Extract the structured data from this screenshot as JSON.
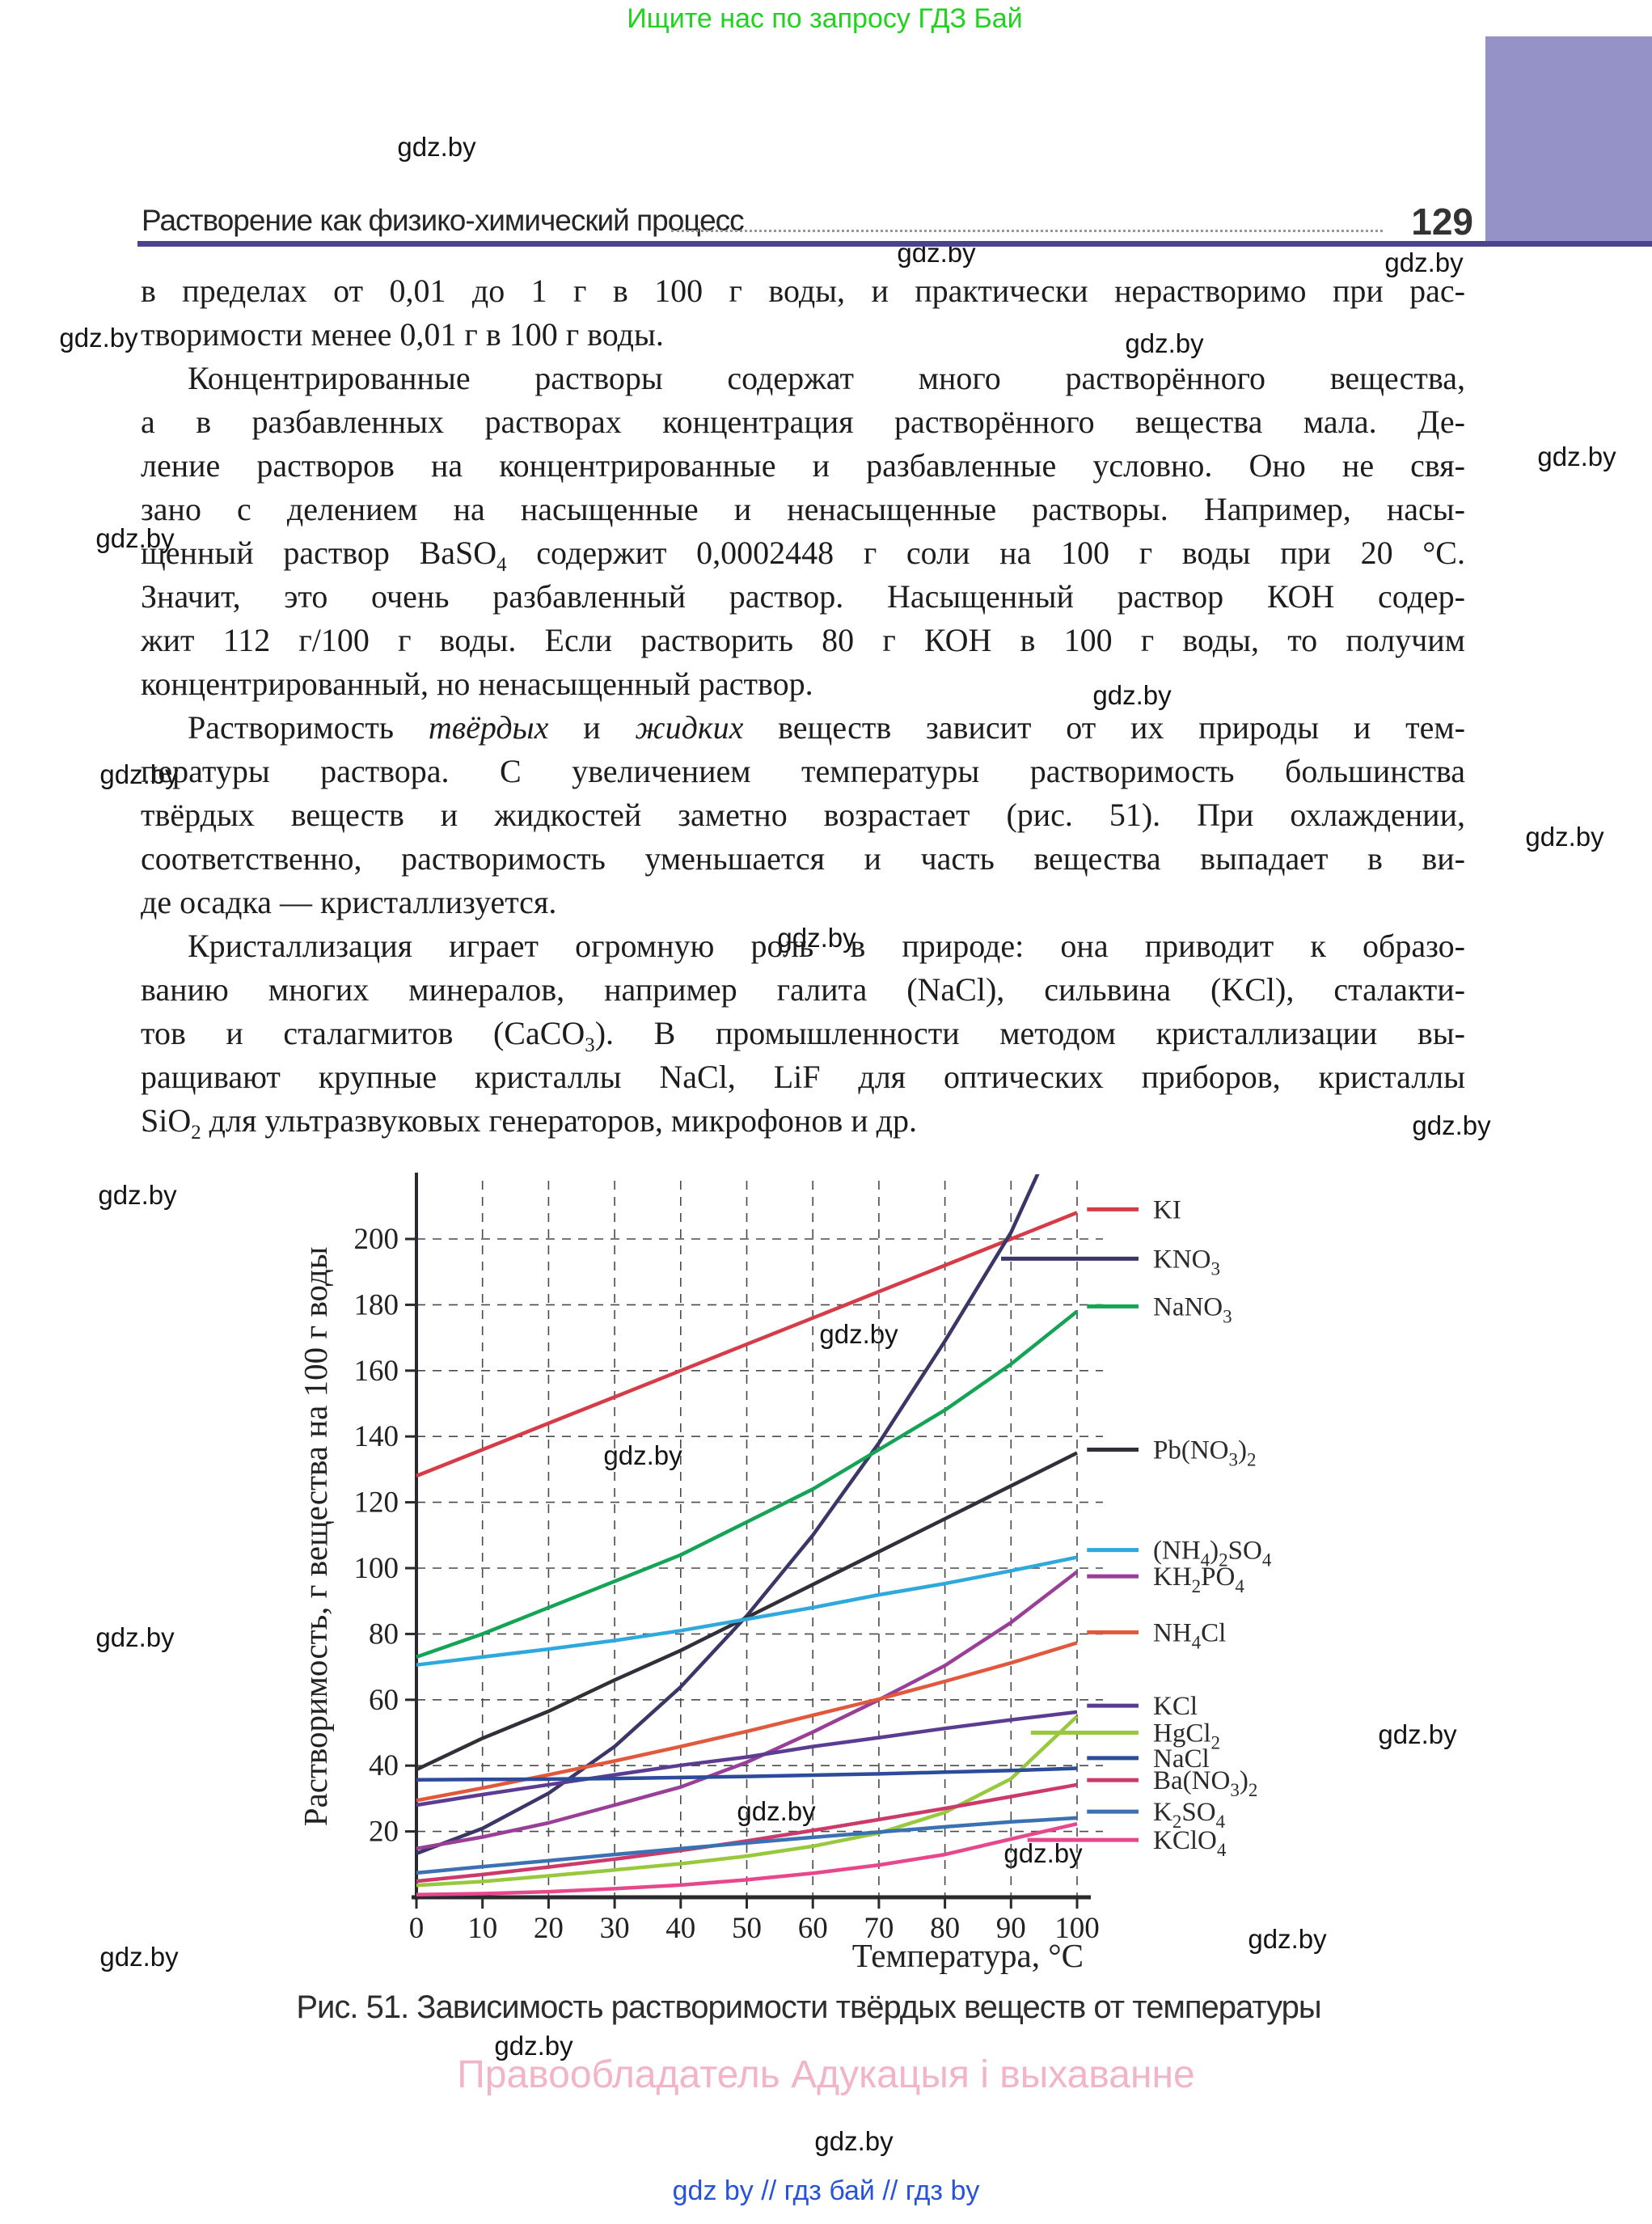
{
  "banner": {
    "text": "Ищите нас по запросу ГДЗ Бай",
    "color": "#1fd31f"
  },
  "watermark": {
    "text": "gdz.by"
  },
  "header": {
    "title": "Растворение как физико-химический процесс",
    "page_number": "129",
    "underline_color": "#4a4490",
    "block_color": "#9592c7"
  },
  "body": {
    "paragraphs": [
      {
        "indent": false,
        "lines": [
          [
            "в пределах от 0,01 до 1 г в 100 г воды, и практически нерастворимо при рас-"
          ],
          [
            "творимости менее 0,01 г в 100 г воды."
          ]
        ]
      },
      {
        "indent": true,
        "lines": [
          [
            "Концентрированные растворы содержат много растворённого вещества,"
          ],
          [
            "а в разбавленных растворах концентрация растворённого вещества мала. Де-"
          ],
          [
            "ление растворов на концентрированные и разбавленные условно. Оно не свя-"
          ],
          [
            "зано с делением на насыщенные и ненасыщенные растворы. Например, насы-"
          ],
          [
            "щенный раствор BaSO",
            {
              "t": "4",
              "s": 1
            },
            " содержит 0,0002448 г соли на 100 г воды при 20 °С."
          ],
          [
            "Значит, это очень разбавленный раствор. Насыщенный раствор КОН содер-"
          ],
          [
            "жит 112 г/100 г воды. Если растворить 80 г КОН в 100 г воды, то получим"
          ],
          [
            "концентрированный, но ненасыщенный раствор."
          ]
        ]
      },
      {
        "indent": true,
        "lines": [
          [
            "Растворимость ",
            {
              "t": "твёрдых",
              "i": 1
            },
            " и ",
            {
              "t": "жидких",
              "i": 1
            },
            " веществ зависит от их природы и тем-"
          ],
          [
            "пературы раствора. С увеличением температуры растворимость большинства"
          ],
          [
            "твёрдых веществ и жидкостей заметно возрастает (рис. 51). При охлаждении,"
          ],
          [
            "соответственно, растворимость уменьшается и часть вещества выпадает в ви-"
          ],
          [
            "де осадка — кристаллизуется."
          ]
        ]
      },
      {
        "indent": true,
        "lines": [
          [
            "Кристаллизация играет огромную роль в природе: она приводит к образо-"
          ],
          [
            "ванию многих минералов, например галита (NaCl), сильвина (KCl), сталакти-"
          ],
          [
            "тов и сталагмитов (CaCO",
            {
              "t": "3",
              "s": 1
            },
            "). В промышленности методом кристаллизации вы-"
          ],
          [
            "ращивают крупные кристаллы NaCl, LiF для оптических приборов, кристаллы"
          ],
          [
            "SiO",
            {
              "t": "2",
              "s": 1
            },
            " для ультразвуковых генераторов, микрофонов и др."
          ]
        ]
      }
    ]
  },
  "chart_data": {
    "type": "line",
    "title": "",
    "xlabel": "Температура, °С",
    "ylabel": "Растворимость, г вещества на 100 г воды",
    "x": [
      0,
      10,
      20,
      30,
      40,
      50,
      60,
      70,
      80,
      90,
      100
    ],
    "xlim": [
      0,
      100
    ],
    "ylim": [
      0,
      218
    ],
    "xticks": [
      0,
      10,
      20,
      30,
      40,
      50,
      60,
      70,
      80,
      90,
      100
    ],
    "yticks": [
      20,
      40,
      60,
      80,
      100,
      120,
      140,
      160,
      180,
      200
    ],
    "grid": "dashed",
    "legend_position": "right",
    "series": [
      {
        "formula": "KI",
        "color": "#d63c47",
        "values": [
          128,
          136,
          144,
          152,
          160,
          168,
          176,
          184,
          192,
          200,
          208
        ],
        "legend_value": 209,
        "key_start": 101.5
      },
      {
        "formula": "KNO_3",
        "color": "#3b3668",
        "values": [
          13.3,
          20.9,
          31.6,
          45.8,
          63.9,
          85.5,
          110,
          138,
          169,
          202,
          246
        ],
        "legend_value": 194,
        "key_start": 88.5
      },
      {
        "formula": "NaNO_3",
        "color": "#15a356",
        "values": [
          73,
          80,
          88,
          96,
          104,
          114,
          124,
          136,
          148,
          162,
          178
        ],
        "legend_value": 179.5,
        "key_start": 101.5
      },
      {
        "formula": "Pb(NO_3)_2",
        "color": "#303038",
        "values": [
          38.8,
          48.3,
          56.5,
          66,
          75,
          85,
          95,
          105,
          115,
          125,
          135
        ],
        "legend_value": 136,
        "key_start": 101.5
      },
      {
        "formula": "(NH_4)_2SO_4",
        "color": "#2fa8dd",
        "values": [
          70.6,
          73,
          75.4,
          78,
          81,
          84.5,
          88,
          91.9,
          95.3,
          99.2,
          103.3
        ],
        "legend_value": 105.5,
        "key_start": 101.5
      },
      {
        "formula": "KH_2PO_4",
        "color": "#993f98",
        "values": [
          14.8,
          18.3,
          22.6,
          28,
          33.5,
          41,
          50.2,
          60,
          70.4,
          83.5,
          98.9
        ],
        "legend_value": 97.5,
        "key_start": 101.5
      },
      {
        "formula": "NH_4Cl",
        "color": "#e0593c",
        "values": [
          29.4,
          33.2,
          37.2,
          41.4,
          45.8,
          50.4,
          55.3,
          60.2,
          65.6,
          71.2,
          77.3
        ],
        "legend_value": 80.5,
        "key_start": 101.5
      },
      {
        "formula": "KCl",
        "color": "#5b3c92",
        "values": [
          28,
          31.2,
          34.2,
          37.2,
          40.1,
          42.6,
          45.8,
          48.5,
          51.3,
          53.9,
          56.3
        ],
        "legend_value": 58.2,
        "key_start": 101.5
      },
      {
        "formula": "HgCl_2",
        "color": "#97c83e",
        "values": [
          3.6,
          4.8,
          6.5,
          8.3,
          10.2,
          12.5,
          15.5,
          19.5,
          25.8,
          36,
          55
        ],
        "legend_value": 50,
        "key_start": 93
      },
      {
        "formula": "NaCl",
        "color": "#2d4b9b",
        "values": [
          35.7,
          35.8,
          35.9,
          36.1,
          36.4,
          36.7,
          37.1,
          37.5,
          38,
          38.5,
          39.2
        ],
        "legend_value": 42.3,
        "key_start": 101.5
      },
      {
        "formula": "Ba(NO_3)_2",
        "color": "#cc3a6a",
        "values": [
          4.9,
          6.9,
          9.2,
          11.6,
          14.2,
          17.1,
          20.3,
          23.6,
          27,
          30.6,
          34.2
        ],
        "legend_value": 35.6,
        "key_start": 101.5
      },
      {
        "formula": "K_2SO_4",
        "color": "#3a71b3",
        "values": [
          7.4,
          9.3,
          11.1,
          13,
          14.8,
          16.5,
          18.2,
          19.8,
          21.4,
          22.9,
          24.1
        ],
        "legend_value": 26,
        "key_start": 101.5
      },
      {
        "formula": "KClO_4",
        "color": "#e6478d",
        "values": [
          0.8,
          1.1,
          1.7,
          2.6,
          3.7,
          5.3,
          7.3,
          9.8,
          13,
          17.7,
          22.3
        ],
        "legend_value": 17.4,
        "key_start": 92.5
      }
    ]
  },
  "figure_caption": "Рис. 51. Зависимость растворимости твёрдых веществ от температуры",
  "footer": {
    "publisher": "Правообладатель Адукацыя і выхаванне",
    "publisher_color": "#f2b4c7",
    "links": "gdz by  //  гдз бай  //  гдз by"
  }
}
